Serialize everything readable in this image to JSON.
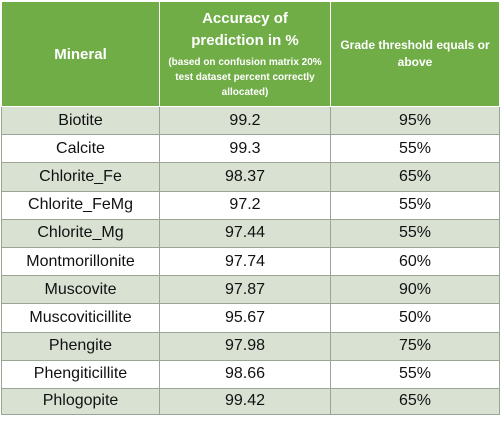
{
  "header": {
    "mineral": "Mineral",
    "accuracy_title": "Accuracy of prediction in %",
    "accuracy_subtitle": "(based on confusion matrix 20% test dataset percent correctly allocated)",
    "grade": "Grade threshold equals or above"
  },
  "rows": [
    {
      "mineral": "Biotite",
      "accuracy": "99.2",
      "grade": "95%"
    },
    {
      "mineral": "Calcite",
      "accuracy": "99.3",
      "grade": "55%"
    },
    {
      "mineral": "Chlorite_Fe",
      "accuracy": "98.37",
      "grade": "65%"
    },
    {
      "mineral": "Chlorite_FeMg",
      "accuracy": "97.2",
      "grade": "55%"
    },
    {
      "mineral": "Chlorite_Mg",
      "accuracy": "97.44",
      "grade": "55%"
    },
    {
      "mineral": "Montmorillonite",
      "accuracy": "97.74",
      "grade": "60%"
    },
    {
      "mineral": "Muscovite",
      "accuracy": "97.87",
      "grade": "90%"
    },
    {
      "mineral": "Muscoviticillite",
      "accuracy": "95.67",
      "grade": "50%"
    },
    {
      "mineral": "Phengite",
      "accuracy": "97.98",
      "grade": "75%"
    },
    {
      "mineral": "Phengiticillite",
      "accuracy": "98.66",
      "grade": "55%"
    },
    {
      "mineral": "Phlogopite",
      "accuracy": "99.42",
      "grade": "65%"
    }
  ]
}
